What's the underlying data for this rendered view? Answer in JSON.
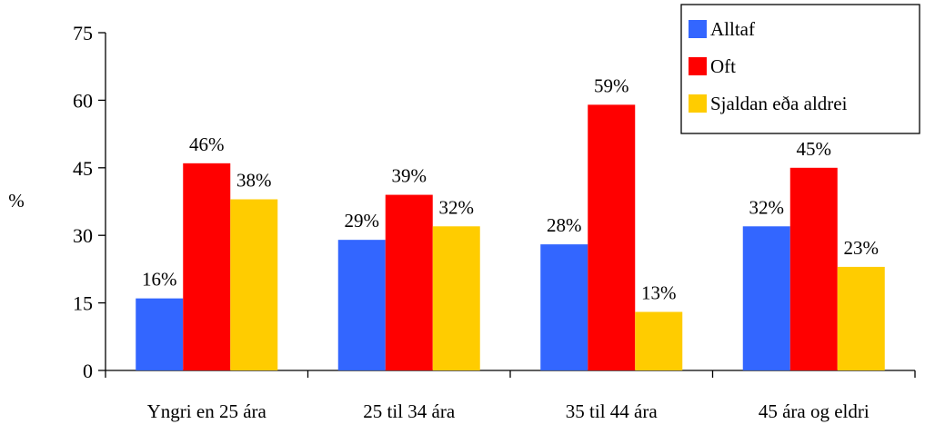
{
  "chart_data": {
    "type": "bar",
    "ylabel": "%",
    "ylim": [
      0,
      75
    ],
    "yticks": [
      0,
      15,
      30,
      45,
      60,
      75
    ],
    "grid": false,
    "legend_position": "top-right",
    "categories": [
      "Yngri en 25 ára",
      "25 til 34 ára",
      "35 til 44 ára",
      "45 ára og eldri"
    ],
    "series": [
      {
        "name": "Alltaf",
        "color": "#3366ff",
        "values": [
          16,
          29,
          28,
          32
        ],
        "labels": [
          "16%",
          "29%",
          "28%",
          "32%"
        ]
      },
      {
        "name": "Oft",
        "color": "#ff0000",
        "values": [
          46,
          39,
          59,
          45
        ],
        "labels": [
          "46%",
          "39%",
          "59%",
          "45%"
        ]
      },
      {
        "name": "Sjaldan eða aldrei",
        "color": "#ffcc00",
        "values": [
          38,
          32,
          13,
          23
        ],
        "labels": [
          "38%",
          "32%",
          "13%",
          "23%"
        ]
      }
    ]
  }
}
